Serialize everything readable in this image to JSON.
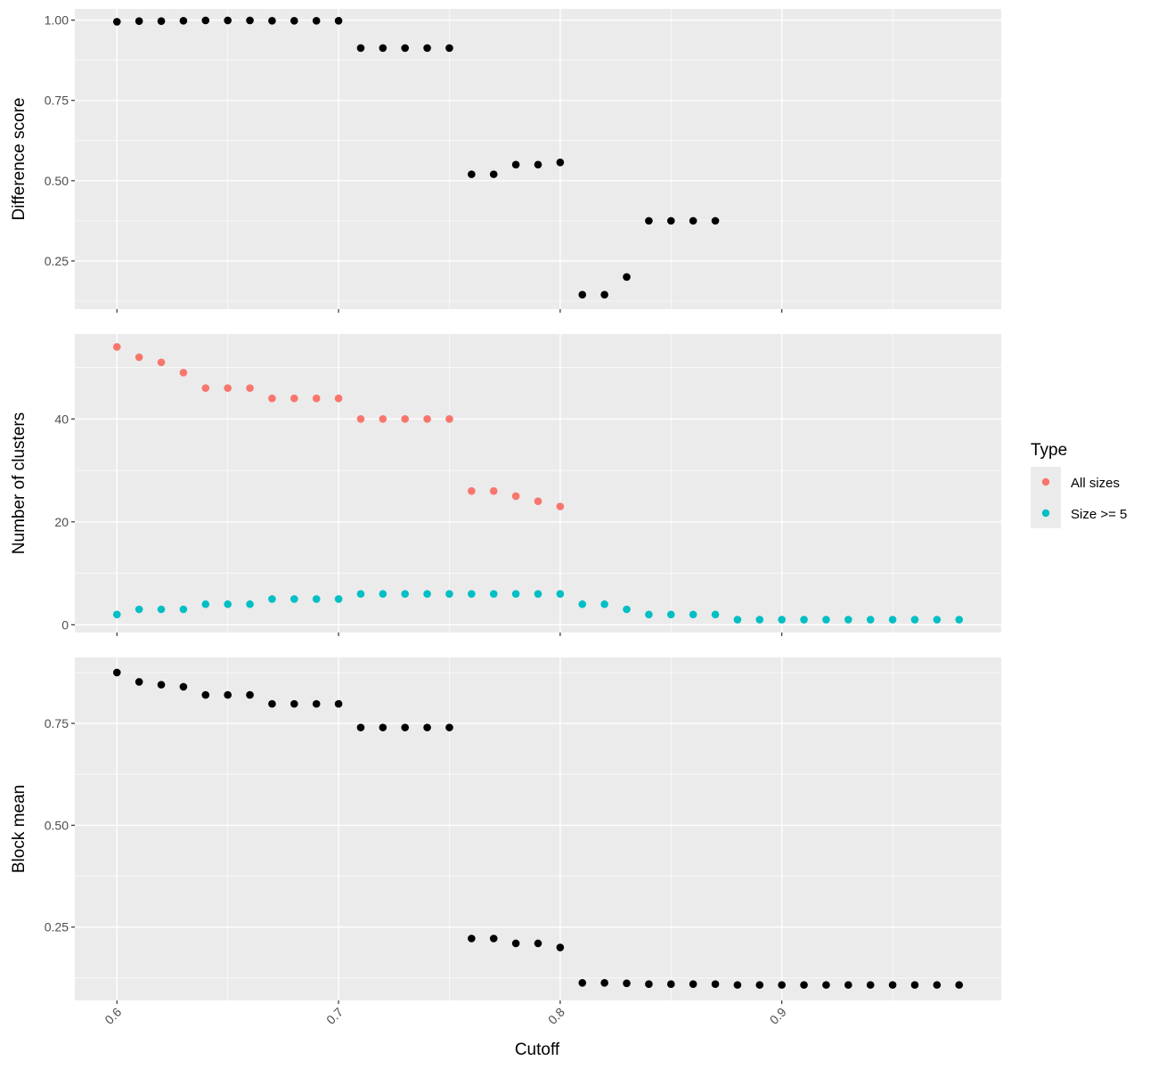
{
  "chart_data": {
    "type": "scatter",
    "xlabel": "Cutoff",
    "x_ticks": [
      0.6,
      0.7,
      0.8,
      0.9
    ],
    "x_tick_labels": [
      "0.6",
      "0.7",
      "0.8",
      "0.9"
    ],
    "xlim": [
      0.581,
      0.999
    ],
    "grid": true,
    "legend": {
      "title": "Type",
      "placement": "right",
      "entries": [
        {
          "label": "All sizes",
          "color": "#F8766D"
        },
        {
          "label": "Size >= 5",
          "color": "#00BFC4"
        }
      ]
    },
    "panels": [
      {
        "ylabel": "Difference score",
        "ylim": [
          0.1,
          1.035
        ],
        "y_ticks": [
          0.25,
          0.5,
          0.75,
          1.0
        ],
        "y_tick_labels": [
          "0.25",
          "0.50",
          "0.75",
          "1.00"
        ],
        "series": [
          {
            "color": "#000000",
            "x": [
              0.6,
              0.61,
              0.62,
              0.63,
              0.64,
              0.65,
              0.66,
              0.67,
              0.68,
              0.69,
              0.7,
              0.71,
              0.72,
              0.73,
              0.74,
              0.75,
              0.76,
              0.77,
              0.78,
              0.79,
              0.8,
              0.81,
              0.82,
              0.83,
              0.84,
              0.85,
              0.86,
              0.87
            ],
            "values": [
              0.995,
              0.997,
              0.997,
              0.998,
              0.999,
              0.999,
              0.999,
              0.998,
              0.998,
              0.998,
              0.998,
              0.913,
              0.913,
              0.913,
              0.913,
              0.913,
              0.52,
              0.52,
              0.55,
              0.55,
              0.557,
              0.145,
              0.145,
              0.2,
              0.375,
              0.375,
              0.375,
              0.375
            ]
          }
        ]
      },
      {
        "ylabel": "Number of clusters",
        "ylim": [
          -1.5,
          56.5
        ],
        "y_ticks": [
          0,
          20,
          40
        ],
        "y_tick_labels": [
          "0",
          "20",
          "40"
        ],
        "series": [
          {
            "name": "All sizes",
            "color": "#F8766D",
            "x": [
              0.6,
              0.61,
              0.62,
              0.63,
              0.64,
              0.65,
              0.66,
              0.67,
              0.68,
              0.69,
              0.7,
              0.71,
              0.72,
              0.73,
              0.74,
              0.75,
              0.76,
              0.77,
              0.78,
              0.79,
              0.8
            ],
            "values": [
              54,
              52,
              51,
              49,
              46,
              46,
              46,
              44,
              44,
              44,
              44,
              40,
              40,
              40,
              40,
              40,
              26,
              26,
              25,
              24,
              23
            ]
          },
          {
            "name": "Size >= 5",
            "color": "#00BFC4",
            "x": [
              0.6,
              0.61,
              0.62,
              0.63,
              0.64,
              0.65,
              0.66,
              0.67,
              0.68,
              0.69,
              0.7,
              0.71,
              0.72,
              0.73,
              0.74,
              0.75,
              0.76,
              0.77,
              0.78,
              0.79,
              0.8,
              0.81,
              0.82,
              0.83,
              0.84,
              0.85,
              0.86,
              0.87,
              0.88,
              0.89,
              0.9,
              0.91,
              0.92,
              0.93,
              0.94,
              0.95,
              0.96,
              0.97,
              0.98
            ],
            "values": [
              2,
              3,
              3,
              3,
              4,
              4,
              4,
              5,
              5,
              5,
              5,
              6,
              6,
              6,
              6,
              6,
              6,
              6,
              6,
              6,
              6,
              4,
              4,
              3,
              2,
              2,
              2,
              2,
              1,
              1,
              1,
              1,
              1,
              1,
              1,
              1,
              1,
              1,
              1
            ]
          }
        ]
      },
      {
        "ylabel": "Block mean",
        "ylim": [
          0.07,
          0.912
        ],
        "y_ticks": [
          0.25,
          0.5,
          0.75
        ],
        "y_tick_labels": [
          "0.25",
          "0.50",
          "0.75"
        ],
        "series": [
          {
            "color": "#000000",
            "x": [
              0.6,
              0.61,
              0.62,
              0.63,
              0.64,
              0.65,
              0.66,
              0.67,
              0.68,
              0.69,
              0.7,
              0.71,
              0.72,
              0.73,
              0.74,
              0.75,
              0.76,
              0.77,
              0.78,
              0.79,
              0.8,
              0.81,
              0.82,
              0.83,
              0.84,
              0.85,
              0.86,
              0.87,
              0.88,
              0.89,
              0.9,
              0.91,
              0.92,
              0.93,
              0.94,
              0.95,
              0.96,
              0.97,
              0.98
            ],
            "values": [
              0.875,
              0.852,
              0.845,
              0.84,
              0.82,
              0.82,
              0.82,
              0.798,
              0.798,
              0.798,
              0.798,
              0.74,
              0.74,
              0.74,
              0.74,
              0.74,
              0.222,
              0.222,
              0.21,
              0.21,
              0.2,
              0.113,
              0.113,
              0.112,
              0.11,
              0.11,
              0.11,
              0.11,
              0.108,
              0.108,
              0.108,
              0.108,
              0.108,
              0.108,
              0.108,
              0.108,
              0.108,
              0.108,
              0.108
            ]
          }
        ]
      }
    ]
  }
}
